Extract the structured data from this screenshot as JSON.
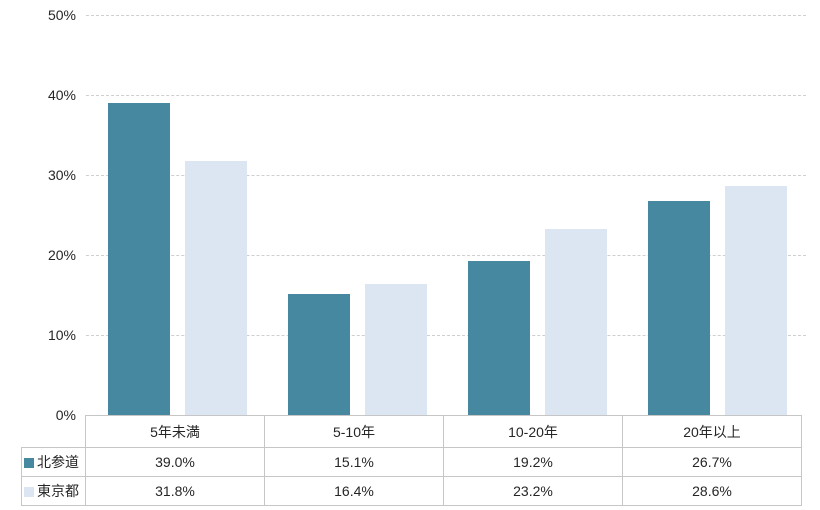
{
  "chart_data": {
    "type": "bar",
    "categories": [
      "5年未満",
      "5-10年",
      "10-20年",
      "20年以上"
    ],
    "series": [
      {
        "name": "北参道",
        "color": "#4688a0",
        "values": [
          39.0,
          15.1,
          19.2,
          26.7
        ],
        "value_labels": [
          "39.0%",
          "15.1%",
          "19.2%",
          "26.7%"
        ]
      },
      {
        "name": "東京都",
        "color": "#dce6f2",
        "values": [
          31.8,
          16.4,
          23.2,
          28.6
        ],
        "value_labels": [
          "31.8%",
          "16.4%",
          "23.2%",
          "28.6%"
        ]
      }
    ],
    "y_axis": {
      "min": 0,
      "max": 50,
      "step": 10,
      "tick_labels": [
        "0%",
        "10%",
        "20%",
        "30%",
        "40%",
        "50%"
      ]
    },
    "title": "",
    "xlabel": "",
    "ylabel": "",
    "grid": "horizontal-dashed",
    "legend_position": "table-left-column",
    "colors": {
      "gridline": "#cfcfcf",
      "table_border": "#c6c6c6",
      "text": "#262626",
      "background": "#ffffff"
    }
  }
}
